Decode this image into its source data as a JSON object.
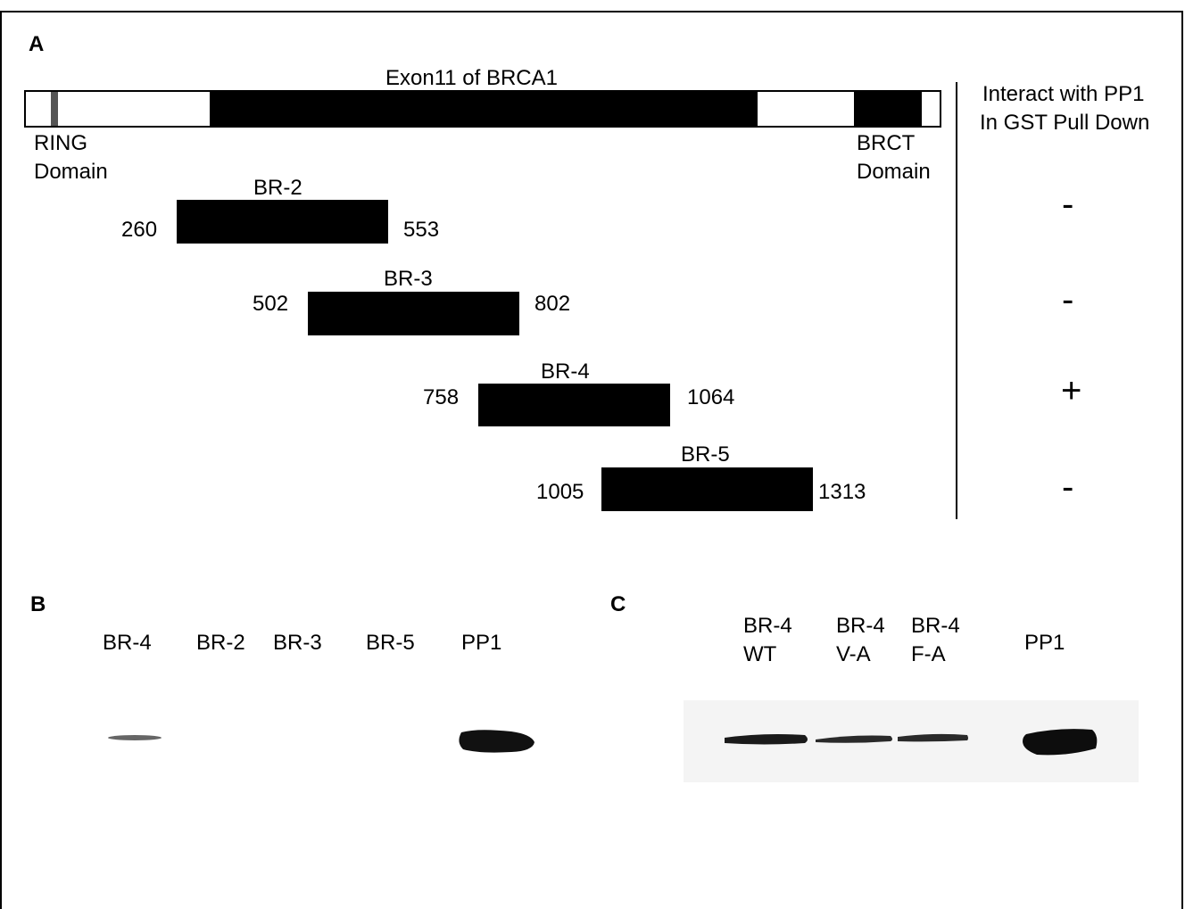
{
  "panels": {
    "a": "A",
    "b": "B",
    "c": "C"
  },
  "panel_a": {
    "gene_title": "Exon11 of BRCA1",
    "ring_label_1": "RING",
    "ring_label_2": "Domain",
    "brct_label_1": "BRCT",
    "brct_label_2": "Domain",
    "interact_header_1": "Interact with PP1",
    "interact_header_2": "In GST Pull Down",
    "fragments": [
      {
        "name": "BR-2",
        "start": "260",
        "end": "553",
        "interaction": "-"
      },
      {
        "name": "BR-3",
        "start": "502",
        "end": "802",
        "interaction": "-"
      },
      {
        "name": "BR-4",
        "start": "758",
        "end": "1064",
        "interaction": "+"
      },
      {
        "name": "BR-5",
        "start": "1005",
        "end": "1313",
        "interaction": "-"
      }
    ]
  },
  "panel_b": {
    "lanes": [
      "BR-4",
      "BR-2",
      "BR-3",
      "BR-5",
      "PP1"
    ]
  },
  "panel_c": {
    "lanes": [
      {
        "line1": "BR-4",
        "line2": "WT"
      },
      {
        "line1": "BR-4",
        "line2": "V-A"
      },
      {
        "line1": "BR-4",
        "line2": "F-A"
      },
      {
        "line1": "PP1",
        "line2": ""
      }
    ]
  },
  "colors": {
    "ring_marker": "#555555",
    "bar": "#000000",
    "gel_background": "#f4f4f4"
  }
}
